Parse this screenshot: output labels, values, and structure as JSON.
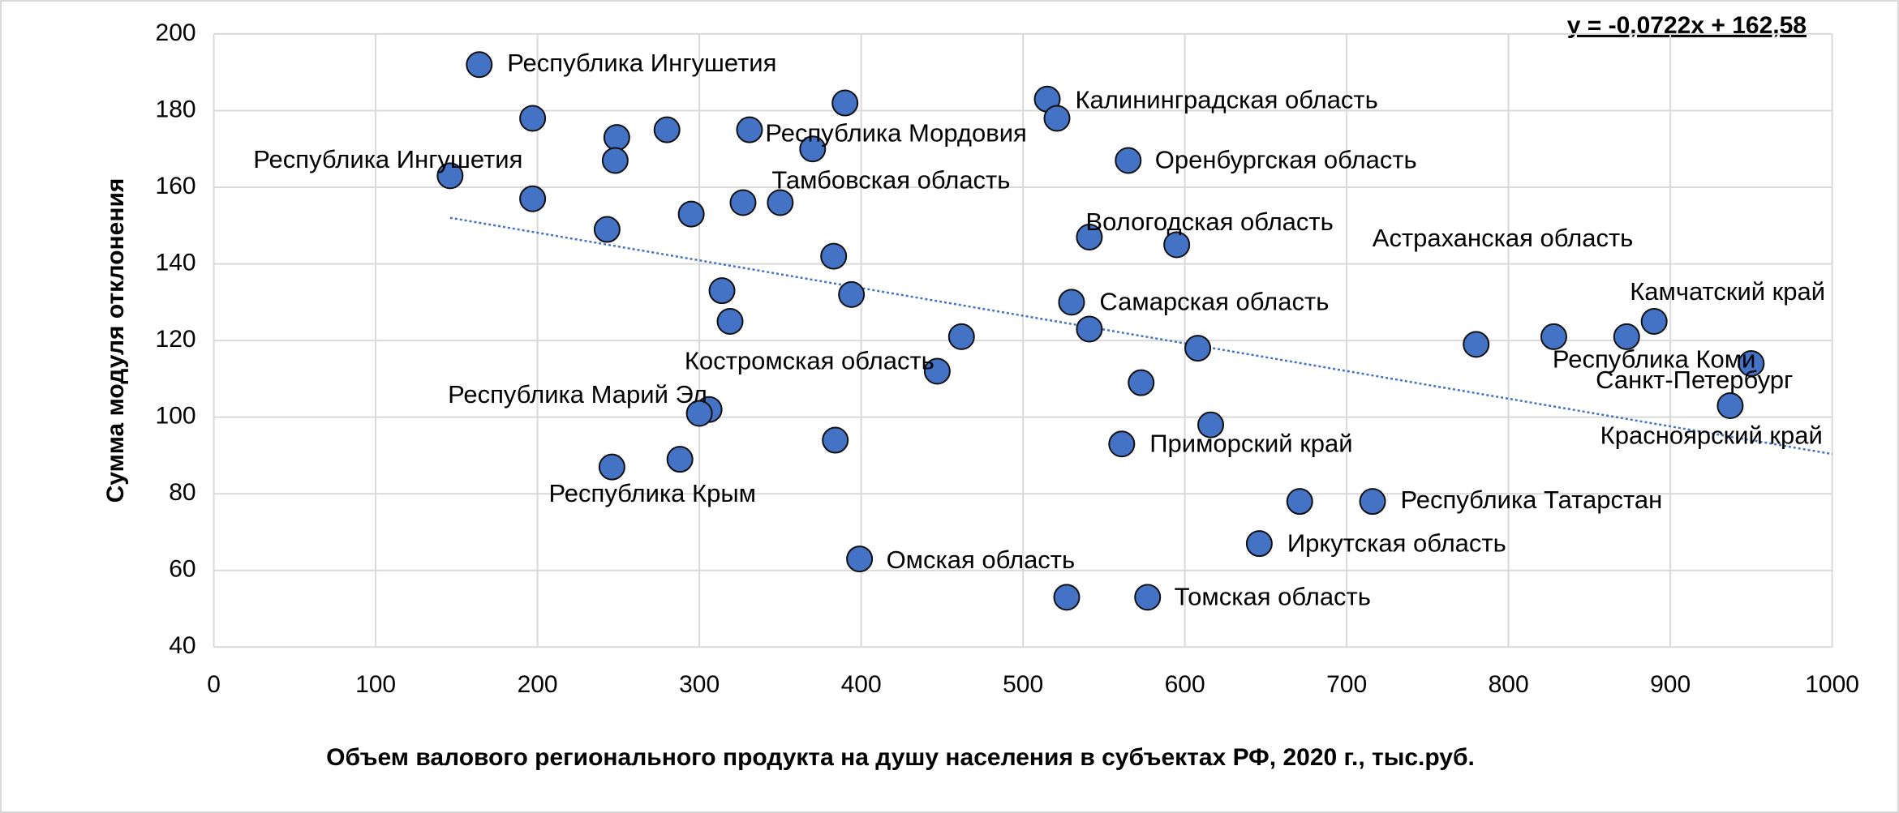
{
  "chart_data": {
    "type": "scatter",
    "x_label": "Объем валового регионального продукта на душу населения в субъектах РФ, 2020 г., тыс.руб.",
    "y_label": "Сумма модуля отклонения",
    "color": "#4472c4",
    "x": [
      164,
      197,
      249,
      280,
      248,
      331,
      390,
      370,
      515,
      521,
      565,
      146,
      197,
      243,
      295,
      327,
      350,
      383,
      314,
      394,
      319,
      462,
      447,
      541,
      595,
      530,
      541,
      608,
      573,
      616,
      561,
      780,
      828,
      873,
      890,
      950,
      937,
      306,
      300,
      246,
      288,
      384,
      399,
      527,
      577,
      671,
      716,
      646
    ],
    "values": [
      192,
      178,
      173,
      175,
      167,
      175,
      182,
      170,
      183,
      178,
      167,
      163,
      157,
      149,
      153,
      156,
      156,
      142,
      133,
      132,
      125,
      121,
      112,
      147,
      145,
      130,
      123,
      118,
      109,
      98,
      93,
      119,
      121,
      121,
      125,
      114,
      103,
      102,
      101,
      87,
      89,
      94,
      63,
      53,
      53,
      78,
      78,
      67
    ],
    "labels": [
      "Республика Ингушетия",
      null,
      null,
      null,
      null,
      "Республика Мордовия",
      null,
      null,
      "Калининградская область",
      null,
      "Оренбургская область",
      "Республика Ингушетия",
      null,
      null,
      null,
      null,
      "Тамбовская область",
      null,
      null,
      null,
      null,
      null,
      "Костромская область",
      "Вологодская область",
      "Астраханская область",
      "Самарская область",
      null,
      null,
      null,
      null,
      "Приморский край",
      null,
      null,
      "Республика Коми",
      "Камчатский край",
      "Санкт-Петербург",
      "Красноярский край",
      null,
      "Республика Марий Эл",
      "Республика Крым",
      null,
      null,
      "Омская область",
      null,
      "Томская область",
      null,
      "Республика Татарстан",
      "Иркутская область"
    ],
    "trendline": {
      "slope": -0.0722,
      "intercept": 162.58,
      "label": "y = -0,0722x + 162,58"
    },
    "xlim": [
      0,
      1000
    ],
    "xticks": [
      0,
      100,
      200,
      300,
      400,
      500,
      600,
      700,
      800,
      900,
      1000
    ],
    "ylim": [
      40,
      200
    ],
    "yticks": [
      40,
      60,
      80,
      100,
      120,
      140,
      160,
      180,
      200
    ],
    "grid": true
  }
}
